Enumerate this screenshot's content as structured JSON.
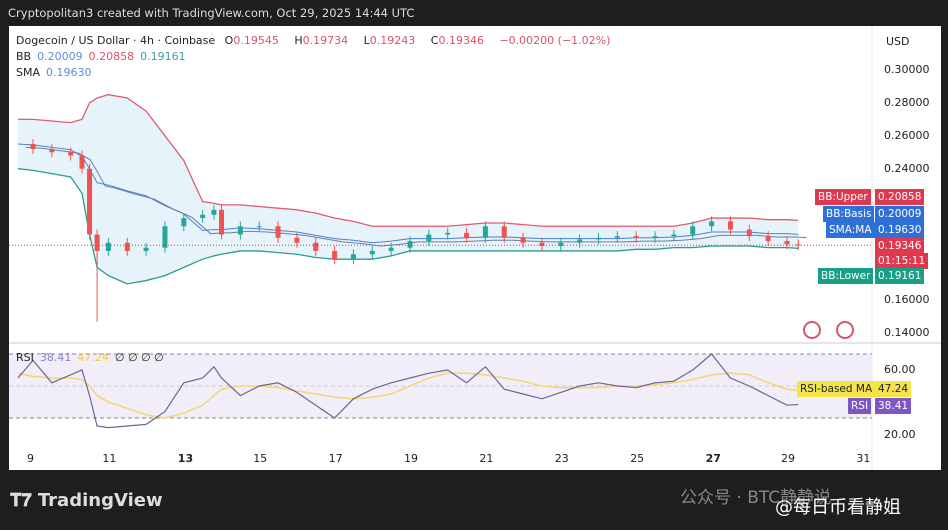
{
  "header": {
    "credit": "Cryptopolitan3 created with TradingView.com, Oct 29, 2025 14:44 UTC"
  },
  "legend": {
    "symbol": "Dogecoin / US Dollar · 4h · Coinbase",
    "o_label": "O",
    "o": "0.19545",
    "h_label": "H",
    "h": "0.19734",
    "l_label": "L",
    "l": "0.19243",
    "c_label": "C",
    "c": "0.19346",
    "change": "−0.00200 (−1.02%)",
    "bb_label": "BB",
    "bb_basis": "0.20009",
    "bb_upper": "0.20858",
    "bb_lower": "0.19161",
    "sma_label": "SMA",
    "sma": "0.19630",
    "rsi_label": "RSI",
    "rsi": "38.41",
    "rsi_ma": "47.24",
    "rsi_extra": "∅ ∅ ∅ ∅"
  },
  "price_axis": {
    "currency": "USD",
    "ticks": [
      "0.30000",
      "0.28000",
      "0.26000",
      "0.24000",
      "0.16000",
      "0.14000"
    ]
  },
  "tags": {
    "bb_upper": {
      "label": "BB:Upper",
      "value": "0.20858",
      "color": "#e0394f"
    },
    "bb_basis": {
      "label": "BB:Basis",
      "value": "0.20009",
      "color": "#2f6fd8"
    },
    "sma": {
      "label": "SMA:MA",
      "value": "0.19630",
      "color": "#2f6fd8"
    },
    "price": {
      "value": "0.19346",
      "countdown": "01:15:11",
      "color": "#e0394f"
    },
    "bb_lower": {
      "label": "BB:Lower",
      "value": "0.19161",
      "color": "#16a085"
    },
    "rsi_ma": {
      "label": "RSI-based MA",
      "value": "47.24",
      "color": "#f5e34a"
    },
    "rsi": {
      "label": "RSI",
      "value": "38.41",
      "color": "#7e57c2"
    }
  },
  "rsi_axis": {
    "ticks": [
      "60.00",
      "20.00"
    ]
  },
  "x_axis": {
    "ticks": [
      "9",
      "11",
      "13",
      "15",
      "17",
      "19",
      "21",
      "23",
      "25",
      "27",
      "29",
      "31"
    ]
  },
  "footer": {
    "logo": "TradingView",
    "watermark1": "公众号 · BTC静静说",
    "watermark2": "@每日币看静姐"
  },
  "chart_data": {
    "type": "line",
    "xlabel": "",
    "ylabel": "",
    "ylim": [
      0.13,
      0.31
    ],
    "x_days": [
      8.6,
      9,
      9.5,
      10,
      10.3,
      10.5,
      10.7,
      11,
      11.5,
      12,
      12.5,
      13,
      13.5,
      13.8,
      14,
      14.5,
      15,
      15.5,
      16,
      16.5,
      17,
      17.5,
      18,
      18.5,
      19,
      19.5,
      20,
      20.5,
      21,
      21.5,
      22,
      22.5,
      23,
      23.5,
      24,
      24.5,
      25,
      25.5,
      26,
      26.5,
      27,
      27.5,
      28,
      28.5,
      29,
      29.3
    ],
    "close": [
      0.255,
      0.252,
      0.25,
      0.248,
      0.24,
      0.2,
      0.19,
      0.195,
      0.19,
      0.192,
      0.205,
      0.21,
      0.212,
      0.215,
      0.2,
      0.205,
      0.205,
      0.198,
      0.195,
      0.19,
      0.185,
      0.188,
      0.19,
      0.192,
      0.196,
      0.2,
      0.201,
      0.198,
      0.205,
      0.198,
      0.195,
      0.193,
      0.195,
      0.197,
      0.198,
      0.199,
      0.198,
      0.199,
      0.2,
      0.205,
      0.208,
      0.203,
      0.199,
      0.196,
      0.194,
      0.19346
    ],
    "bb_upper": [
      0.27,
      0.27,
      0.269,
      0.268,
      0.27,
      0.28,
      0.283,
      0.285,
      0.283,
      0.275,
      0.26,
      0.245,
      0.22,
      0.219,
      0.218,
      0.218,
      0.217,
      0.216,
      0.215,
      0.213,
      0.21,
      0.208,
      0.205,
      0.205,
      0.205,
      0.205,
      0.205,
      0.206,
      0.207,
      0.207,
      0.206,
      0.205,
      0.205,
      0.205,
      0.205,
      0.205,
      0.205,
      0.205,
      0.205,
      0.207,
      0.21,
      0.21,
      0.21,
      0.209,
      0.209,
      0.20858
    ],
    "bb_lower": [
      0.24,
      0.239,
      0.237,
      0.235,
      0.225,
      0.2,
      0.18,
      0.175,
      0.17,
      0.172,
      0.175,
      0.18,
      0.185,
      0.187,
      0.188,
      0.19,
      0.19,
      0.189,
      0.188,
      0.186,
      0.185,
      0.185,
      0.185,
      0.187,
      0.19,
      0.19,
      0.19,
      0.19,
      0.19,
      0.19,
      0.19,
      0.19,
      0.19,
      0.19,
      0.19,
      0.19,
      0.191,
      0.191,
      0.192,
      0.192,
      0.193,
      0.193,
      0.193,
      0.192,
      0.192,
      0.19161
    ],
    "rsi": [
      55,
      66,
      52,
      57,
      60,
      44,
      25,
      24,
      25,
      26,
      34,
      52,
      55,
      62,
      55,
      44,
      50,
      52,
      46,
      38,
      30,
      42,
      48,
      52,
      55,
      58,
      60,
      52,
      62,
      48,
      45,
      42,
      46,
      50,
      52,
      50,
      49,
      52,
      53,
      60,
      70,
      55,
      50,
      44,
      38,
      38.41
    ],
    "rsi_ma": [
      58,
      56,
      55,
      55,
      54,
      50,
      44,
      40,
      36,
      32,
      30,
      33,
      38,
      44,
      48,
      50,
      50,
      49,
      47,
      45,
      43,
      42,
      43,
      45,
      50,
      55,
      58,
      58,
      57,
      55,
      53,
      50,
      49,
      49,
      49,
      50,
      50,
      51,
      52,
      54,
      57,
      58,
      57,
      52,
      48,
      47.24
    ],
    "rsi_ylim": [
      10,
      80
    ]
  }
}
